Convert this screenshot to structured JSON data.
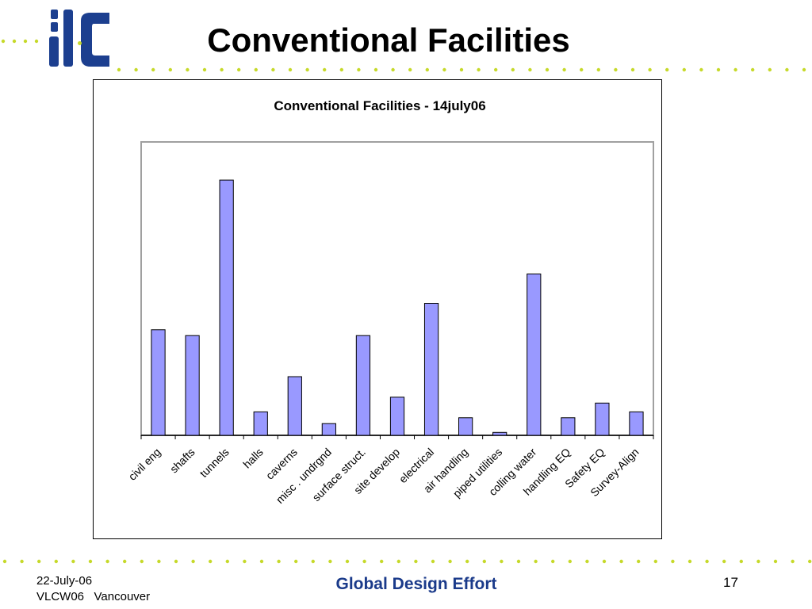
{
  "slide": {
    "title": "Conventional Facilities",
    "footer": {
      "date": "22-July-06",
      "event": "VLCW06   Vancouver",
      "center": "Global Design Effort",
      "page": "17"
    },
    "logo_text": "ilc",
    "logo_icon": "ilc-logo",
    "colors": {
      "logo_blue": "#1c3f8f",
      "dot_green": "#c6d92a",
      "bar_fill": "#9999ff",
      "footer_blue": "#1a3a8a"
    }
  },
  "chart_data": {
    "type": "bar",
    "title": "Conventional Facilities - 14july06",
    "xlabel": "",
    "ylabel": "",
    "ylim": [
      0,
      100
    ],
    "y_axis_shown": false,
    "grid": false,
    "legend": "none",
    "categories": [
      "civil eng",
      "shafts",
      "tunnels",
      "halls",
      "caverns",
      "misc . undrgnd",
      "surface struct.",
      "site develop",
      "electrical",
      "air handling",
      "piped utilities",
      "colling water",
      "handling EQ",
      "Safety EQ",
      "Survey-Align"
    ],
    "values": [
      36,
      34,
      87,
      8,
      20,
      4,
      34,
      13,
      45,
      6,
      1,
      55,
      6,
      11,
      8
    ]
  }
}
